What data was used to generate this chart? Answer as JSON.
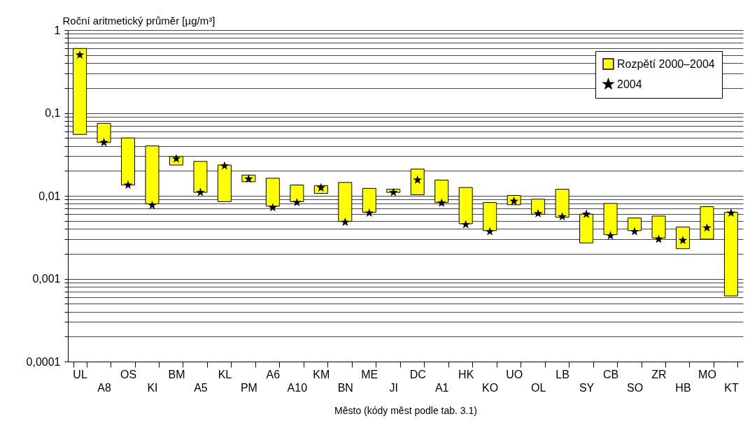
{
  "chart_data": {
    "type": "bar",
    "xlabel": "Město (kódy měst podle tab. 3.1)",
    "ylabel": "Roční aritmetický průměr [µg/m³]",
    "categories": [
      "UL",
      "A8",
      "OS",
      "KI",
      "BM",
      "A5",
      "KL",
      "PM",
      "A6",
      "A10",
      "KM",
      "BN",
      "ME",
      "JI",
      "DC",
      "A1",
      "HK",
      "KO",
      "UO",
      "OL",
      "LB",
      "SY",
      "CB",
      "SO",
      "ZR",
      "HB",
      "MO",
      "KT"
    ],
    "log": true,
    "grid": "y",
    "legend": "top right",
    "ylim": [
      0.0001,
      1
    ],
    "yticks": [
      {
        "value": 0.0001,
        "label": "0,0001"
      },
      {
        "value": 0.0002,
        "label": null
      },
      {
        "value": 0.0003,
        "label": null
      },
      {
        "value": 0.0004,
        "label": null
      },
      {
        "value": 0.0005,
        "label": null
      },
      {
        "value": 0.0006,
        "label": null
      },
      {
        "value": 0.0007,
        "label": null
      },
      {
        "value": 0.0008,
        "label": null
      },
      {
        "value": 0.0009,
        "label": null
      },
      {
        "value": 0.001,
        "label": "0,001"
      },
      {
        "value": 0.002,
        "label": null
      },
      {
        "value": 0.003,
        "label": null
      },
      {
        "value": 0.004,
        "label": null
      },
      {
        "value": 0.005,
        "label": null
      },
      {
        "value": 0.006,
        "label": null
      },
      {
        "value": 0.007,
        "label": null
      },
      {
        "value": 0.008,
        "label": null
      },
      {
        "value": 0.009,
        "label": null
      },
      {
        "value": 0.01,
        "label": "0,01"
      },
      {
        "value": 0.02,
        "label": null
      },
      {
        "value": 0.03,
        "label": null
      },
      {
        "value": 0.04,
        "label": null
      },
      {
        "value": 0.05,
        "label": null
      },
      {
        "value": 0.06,
        "label": null
      },
      {
        "value": 0.07,
        "label": null
      },
      {
        "value": 0.08,
        "label": null
      },
      {
        "value": 0.09,
        "label": null
      },
      {
        "value": 0.1,
        "label": "0,1"
      },
      {
        "value": 0.2,
        "label": null
      },
      {
        "value": 0.3,
        "label": null
      },
      {
        "value": 0.4,
        "label": null
      },
      {
        "value": 0.5,
        "label": null
      },
      {
        "value": 0.6,
        "label": null
      },
      {
        "value": 0.7,
        "label": null
      },
      {
        "value": 0.8,
        "label": null
      },
      {
        "value": 0.9,
        "label": null
      },
      {
        "value": 1,
        "label": "1"
      }
    ],
    "series": [
      {
        "name": "Rozpětí 2000–2004",
        "color": "#ffff00",
        "base": [
          0.055,
          0.044,
          0.0135,
          0.008,
          0.0235,
          0.011,
          0.0085,
          0.0148,
          0.0075,
          0.0085,
          0.0107,
          0.0049,
          0.0063,
          0.011,
          0.0103,
          0.0083,
          0.0046,
          0.0038,
          0.0078,
          0.006,
          0.0055,
          0.0027,
          0.0034,
          0.0038,
          0.0031,
          0.0023,
          0.003,
          0.00062
        ],
        "values": [
          0.545,
          0.031,
          0.0365,
          0.032,
          0.0065,
          0.015,
          0.015,
          0.003,
          0.0088,
          0.005,
          0.0026,
          0.0096,
          0.006,
          0.001,
          0.0107,
          0.0072,
          0.008,
          0.0045,
          0.0023,
          0.0031,
          0.0065,
          0.0033,
          0.0047,
          0.0016,
          0.0026,
          0.0019,
          0.0044,
          0.00568
        ]
      },
      {
        "name": "2004",
        "type": "scatter",
        "color": "#000000",
        "marker": "star",
        "values": [
          0.5,
          0.044,
          0.0135,
          0.0077,
          0.028,
          0.011,
          0.023,
          0.016,
          0.0072,
          0.0083,
          0.0125,
          0.0048,
          0.0062,
          0.011,
          0.0155,
          0.0082,
          0.0045,
          0.0037,
          0.0086,
          0.0061,
          0.0056,
          0.006,
          0.0033,
          0.0037,
          0.003,
          0.0029,
          0.0041,
          0.0062
        ]
      }
    ]
  }
}
